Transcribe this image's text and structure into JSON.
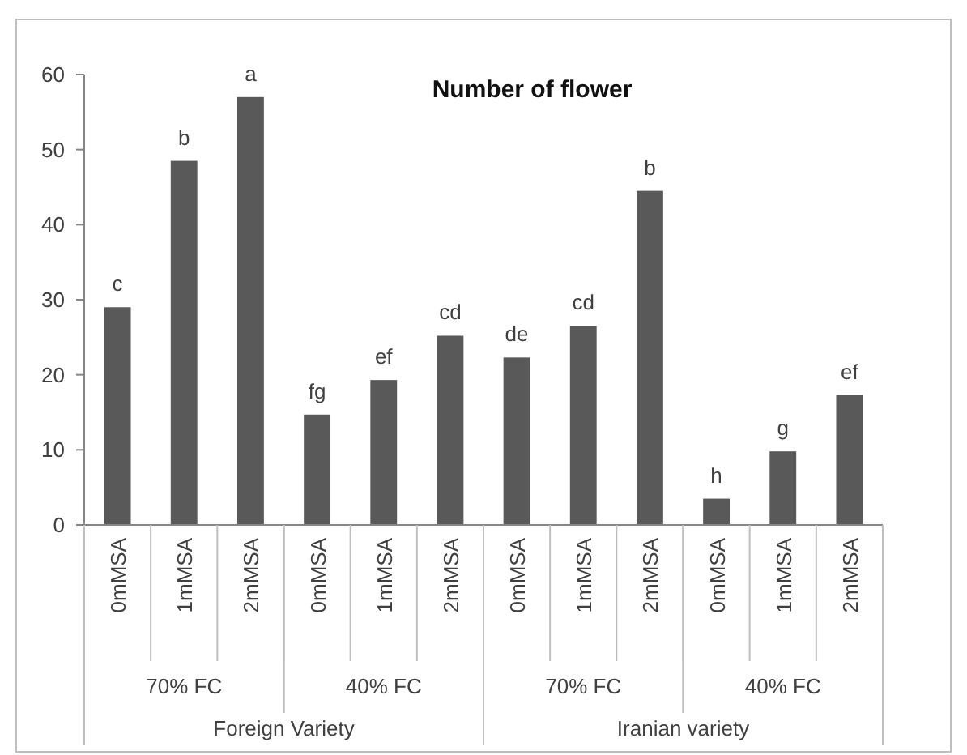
{
  "chart_data": {
    "type": "bar",
    "title": "Number of flower",
    "categories": [
      "0mMSA",
      "1mMSA",
      "2mMSA",
      "0mMSA",
      "1mMSA",
      "2mMSA",
      "0mMSA",
      "1mMSA",
      "2mMSA",
      "0mMSA",
      "1mMSA",
      "2mMSA"
    ],
    "values": [
      29,
      48.5,
      57,
      14.7,
      19.3,
      25.2,
      22.3,
      26.5,
      44.5,
      3.5,
      9.8,
      17.3
    ],
    "value_labels": [
      "c",
      "b",
      "a",
      "fg",
      "ef",
      "cd",
      "de",
      "cd",
      "b",
      "h",
      "g",
      "ef"
    ],
    "color": "#595959",
    "annotations": [
      "70% FC",
      "40% FC",
      "70% FC",
      "40% FC",
      "Foreign Variety",
      "Iranian variety"
    ],
    "ylim": [
      0,
      60
    ],
    "yticks": [
      0,
      10,
      20,
      30,
      40,
      50,
      60
    ],
    "grid": false
  }
}
